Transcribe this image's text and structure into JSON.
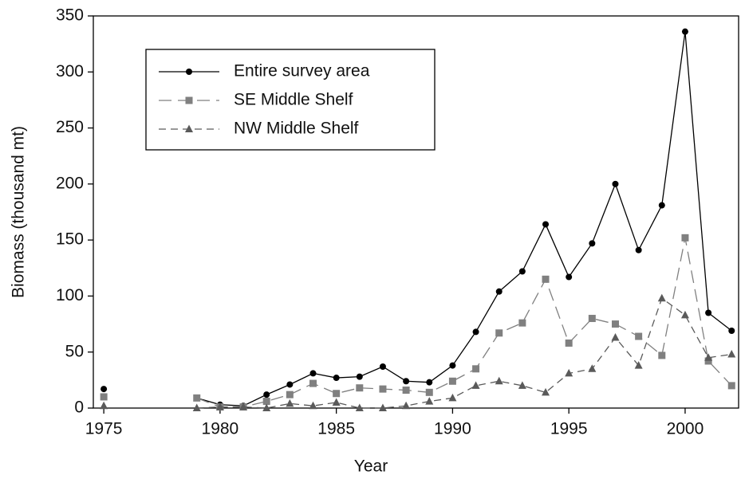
{
  "chart_data": {
    "type": "line",
    "x_label": "Year",
    "y_label": "Biomass (thousand mt)",
    "x": [
      1975,
      1976,
      1977,
      1978,
      1979,
      1980,
      1981,
      1982,
      1983,
      1984,
      1985,
      1986,
      1987,
      1988,
      1989,
      1990,
      1991,
      1992,
      1993,
      1994,
      1995,
      1996,
      1997,
      1998,
      1999,
      2000,
      2001,
      2002
    ],
    "series": [
      {
        "name": "Entire survey area",
        "color": "#000000",
        "marker": "circle",
        "dash": "solid",
        "values": [
          17,
          null,
          null,
          null,
          9,
          3,
          2,
          12,
          21,
          31,
          27,
          28,
          37,
          24,
          23,
          38,
          68,
          104,
          122,
          164,
          117,
          147,
          200,
          141,
          181,
          336,
          85,
          69
        ]
      },
      {
        "name": "SE Middle Shelf",
        "color": "#808080",
        "marker": "square",
        "dash": "long-dash",
        "values": [
          10,
          null,
          null,
          null,
          9,
          1,
          1,
          6,
          12,
          22,
          13,
          18,
          17,
          16,
          14,
          24,
          35,
          67,
          76,
          115,
          58,
          80,
          75,
          64,
          47,
          152,
          42,
          20
        ]
      },
      {
        "name": "NW Middle Shelf",
        "color": "#5a5a5a",
        "marker": "triangle",
        "dash": "dash",
        "values": [
          2,
          null,
          null,
          null,
          0,
          1,
          1,
          0,
          4,
          2,
          5,
          0,
          0,
          2,
          6,
          9,
          20,
          24,
          20,
          14,
          31,
          35,
          63,
          38,
          98,
          83,
          45,
          48
        ]
      }
    ],
    "xlim": [
      1974.55,
      2002.3
    ],
    "xticks": [
      1975,
      1980,
      1985,
      1990,
      1995,
      2000
    ],
    "ylim": [
      0,
      350
    ],
    "yticks": [
      0,
      50,
      100,
      150,
      200,
      250,
      300,
      350
    ],
    "legend": "upper left",
    "grid": false
  }
}
